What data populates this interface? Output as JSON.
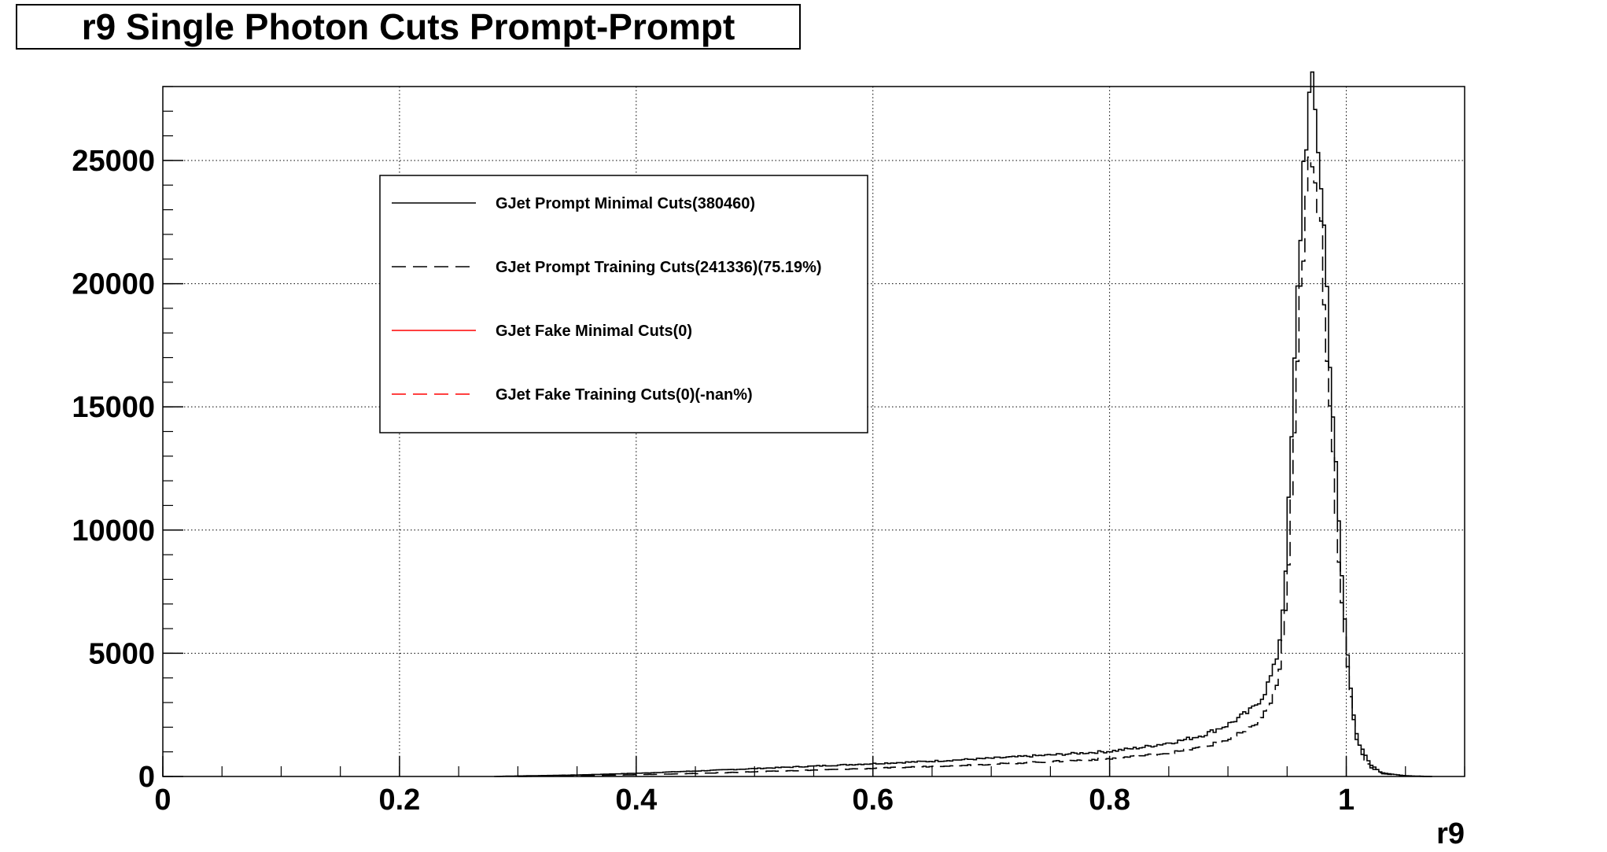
{
  "chart_data": {
    "type": "line",
    "title": "r9 Single Photon Cuts Prompt-Prompt",
    "xlabel": "r9",
    "ylabel": "",
    "xlim": [
      0,
      1.1
    ],
    "ylim": [
      0,
      28000
    ],
    "x_ticks": [
      0,
      0.2,
      0.4,
      0.6,
      0.8,
      1
    ],
    "x_tick_labels": [
      "0",
      "0.2",
      "0.4",
      "0.6",
      "0.8",
      "1"
    ],
    "y_ticks": [
      0,
      5000,
      10000,
      15000,
      20000,
      25000
    ],
    "y_tick_labels": [
      "0",
      "5000",
      "10000",
      "15000",
      "20000",
      "25000"
    ],
    "grid": true,
    "legend_position": "top-left",
    "series": [
      {
        "name": "GJet Prompt Minimal Cuts(380460)",
        "color": "#000000",
        "dash": "solid",
        "points": [
          [
            0.28,
            0
          ],
          [
            0.3,
            20
          ],
          [
            0.35,
            60
          ],
          [
            0.4,
            130
          ],
          [
            0.45,
            220
          ],
          [
            0.5,
            320
          ],
          [
            0.55,
            420
          ],
          [
            0.6,
            520
          ],
          [
            0.65,
            620
          ],
          [
            0.7,
            740
          ],
          [
            0.75,
            870
          ],
          [
            0.8,
            1020
          ],
          [
            0.83,
            1200
          ],
          [
            0.86,
            1450
          ],
          [
            0.88,
            1700
          ],
          [
            0.9,
            2100
          ],
          [
            0.92,
            2700
          ],
          [
            0.93,
            3300
          ],
          [
            0.94,
            4500
          ],
          [
            0.945,
            6000
          ],
          [
            0.95,
            9500
          ],
          [
            0.955,
            15000
          ],
          [
            0.96,
            21000
          ],
          [
            0.965,
            26000
          ],
          [
            0.97,
            27600
          ],
          [
            0.975,
            26500
          ],
          [
            0.98,
            23500
          ],
          [
            0.985,
            18500
          ],
          [
            0.99,
            13500
          ],
          [
            0.995,
            9000
          ],
          [
            1.0,
            5500
          ],
          [
            1.005,
            3000
          ],
          [
            1.01,
            1400
          ],
          [
            1.02,
            500
          ],
          [
            1.03,
            150
          ],
          [
            1.05,
            30
          ],
          [
            1.07,
            0
          ]
        ]
      },
      {
        "name": "GJet Prompt Training Cuts(241336)(75.19%)",
        "color": "#000000",
        "dash": "dashed",
        "points": [
          [
            0.3,
            0
          ],
          [
            0.35,
            30
          ],
          [
            0.4,
            70
          ],
          [
            0.45,
            120
          ],
          [
            0.5,
            190
          ],
          [
            0.55,
            260
          ],
          [
            0.6,
            330
          ],
          [
            0.65,
            410
          ],
          [
            0.7,
            500
          ],
          [
            0.75,
            600
          ],
          [
            0.8,
            720
          ],
          [
            0.83,
            850
          ],
          [
            0.86,
            1020
          ],
          [
            0.88,
            1200
          ],
          [
            0.9,
            1500
          ],
          [
            0.92,
            1950
          ],
          [
            0.93,
            2450
          ],
          [
            0.94,
            3400
          ],
          [
            0.945,
            4700
          ],
          [
            0.95,
            7500
          ],
          [
            0.955,
            12000
          ],
          [
            0.96,
            18000
          ],
          [
            0.965,
            23000
          ],
          [
            0.97,
            24600
          ],
          [
            0.975,
            23500
          ],
          [
            0.98,
            21000
          ],
          [
            0.985,
            16500
          ],
          [
            0.99,
            12000
          ],
          [
            0.995,
            8000
          ],
          [
            1.0,
            4800
          ],
          [
            1.005,
            2600
          ],
          [
            1.01,
            1200
          ],
          [
            1.02,
            400
          ],
          [
            1.03,
            120
          ],
          [
            1.05,
            20
          ],
          [
            1.07,
            0
          ]
        ]
      },
      {
        "name": "GJet Fake Minimal Cuts(0)",
        "color": "#ff0000",
        "dash": "solid",
        "points": []
      },
      {
        "name": "GJet Fake Training Cuts(0)(-nan%)",
        "color": "#ff0000",
        "dash": "dashed",
        "points": []
      }
    ]
  }
}
